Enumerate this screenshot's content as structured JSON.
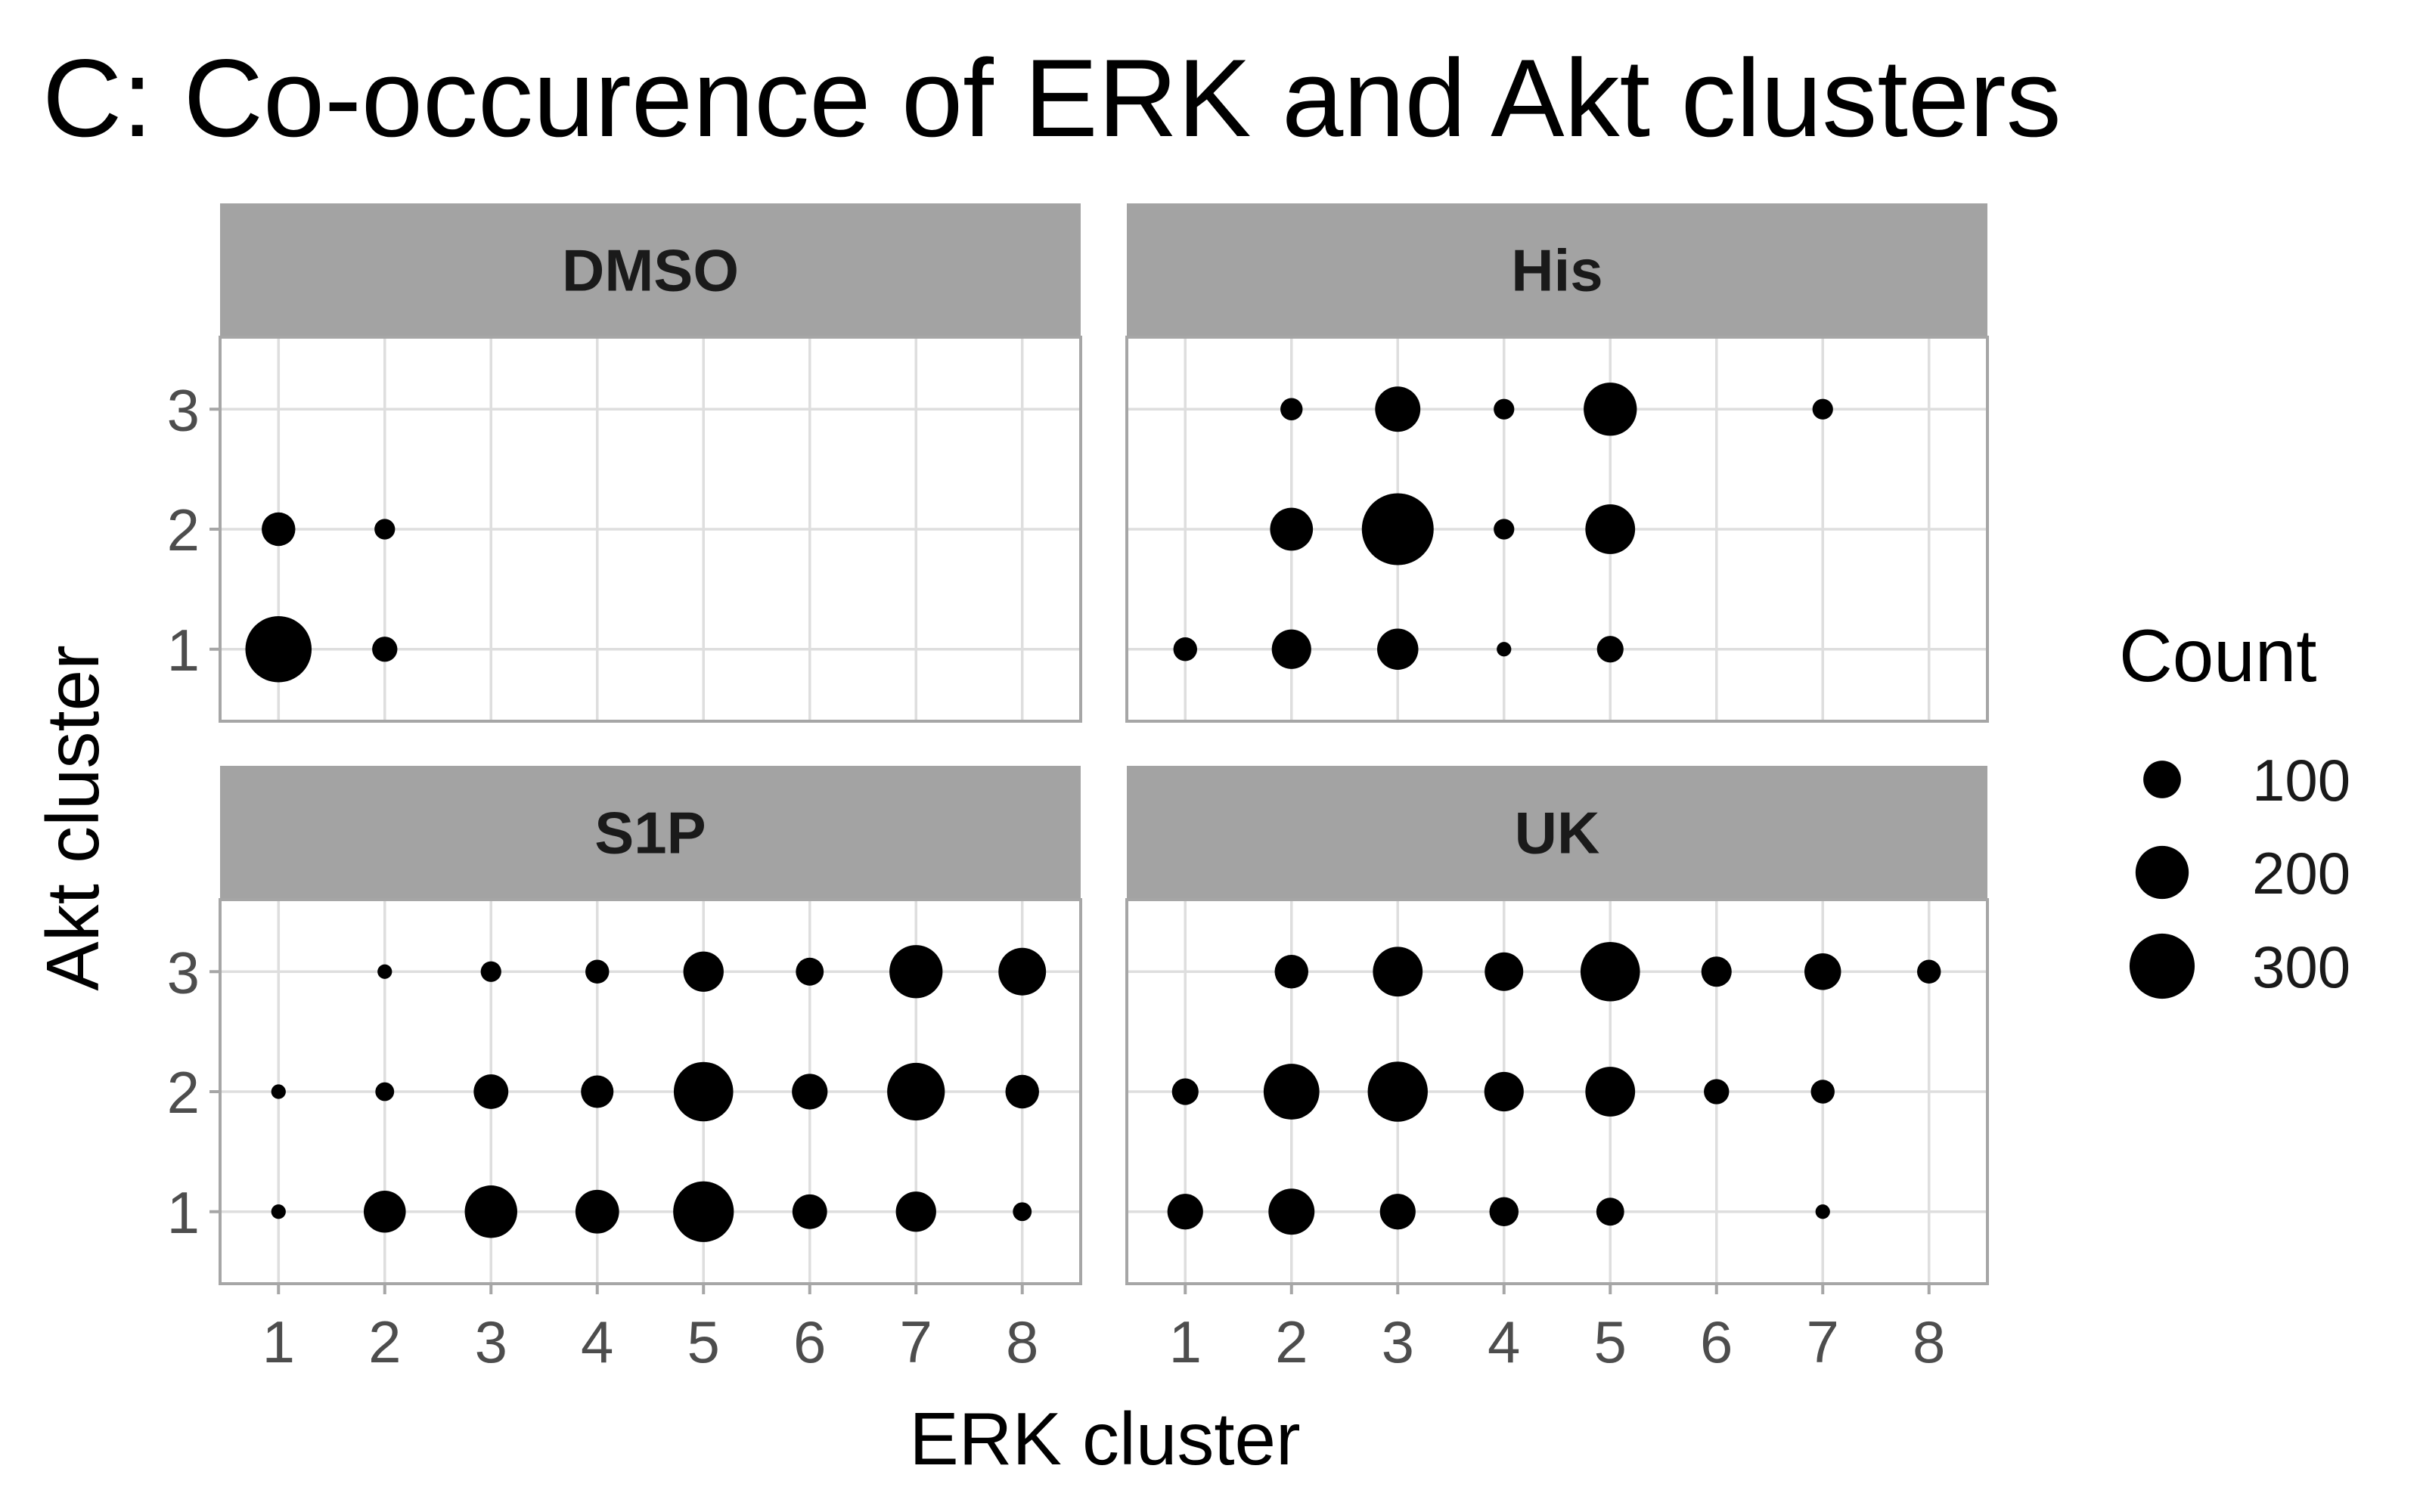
{
  "chart_data": {
    "type": "scatter",
    "title": "C: Co-occurence of ERK and Akt clusters",
    "xlabel": "ERK cluster",
    "ylabel": "Akt cluster",
    "x_ticks": [
      "1",
      "2",
      "3",
      "4",
      "5",
      "6",
      "7",
      "8"
    ],
    "y_ticks": [
      "1",
      "2",
      "3"
    ],
    "xlim": [
      0.45,
      8.55
    ],
    "ylim": [
      0.4,
      3.6
    ],
    "grid": true,
    "facets": [
      {
        "name": "DMSO",
        "points": [
          {
            "x": 1,
            "y": 1,
            "count": 310
          },
          {
            "x": 1,
            "y": 2,
            "count": 80
          },
          {
            "x": 2,
            "y": 1,
            "count": 45
          },
          {
            "x": 2,
            "y": 2,
            "count": 30
          }
        ]
      },
      {
        "name": "His",
        "points": [
          {
            "x": 1,
            "y": 1,
            "count": 40
          },
          {
            "x": 2,
            "y": 1,
            "count": 110
          },
          {
            "x": 2,
            "y": 2,
            "count": 130
          },
          {
            "x": 2,
            "y": 3,
            "count": 35
          },
          {
            "x": 3,
            "y": 1,
            "count": 120
          },
          {
            "x": 3,
            "y": 2,
            "count": 365
          },
          {
            "x": 3,
            "y": 3,
            "count": 145
          },
          {
            "x": 4,
            "y": 1,
            "count": 15
          },
          {
            "x": 4,
            "y": 2,
            "count": 30
          },
          {
            "x": 4,
            "y": 3,
            "count": 30
          },
          {
            "x": 5,
            "y": 1,
            "count": 50
          },
          {
            "x": 5,
            "y": 2,
            "count": 175
          },
          {
            "x": 5,
            "y": 3,
            "count": 200
          },
          {
            "x": 7,
            "y": 3,
            "count": 30
          }
        ]
      },
      {
        "name": "S1P",
        "points": [
          {
            "x": 1,
            "y": 1,
            "count": 15
          },
          {
            "x": 1,
            "y": 2,
            "count": 15
          },
          {
            "x": 2,
            "y": 1,
            "count": 125
          },
          {
            "x": 2,
            "y": 2,
            "count": 25
          },
          {
            "x": 2,
            "y": 3,
            "count": 15
          },
          {
            "x": 3,
            "y": 1,
            "count": 195
          },
          {
            "x": 3,
            "y": 2,
            "count": 85
          },
          {
            "x": 3,
            "y": 3,
            "count": 30
          },
          {
            "x": 4,
            "y": 1,
            "count": 135
          },
          {
            "x": 4,
            "y": 2,
            "count": 75
          },
          {
            "x": 4,
            "y": 3,
            "count": 40
          },
          {
            "x": 5,
            "y": 1,
            "count": 260
          },
          {
            "x": 5,
            "y": 2,
            "count": 250
          },
          {
            "x": 5,
            "y": 3,
            "count": 115
          },
          {
            "x": 6,
            "y": 1,
            "count": 85
          },
          {
            "x": 6,
            "y": 2,
            "count": 90
          },
          {
            "x": 6,
            "y": 3,
            "count": 55
          },
          {
            "x": 7,
            "y": 1,
            "count": 115
          },
          {
            "x": 7,
            "y": 2,
            "count": 235
          },
          {
            "x": 7,
            "y": 3,
            "count": 200
          },
          {
            "x": 8,
            "y": 1,
            "count": 25
          },
          {
            "x": 8,
            "y": 2,
            "count": 80
          },
          {
            "x": 8,
            "y": 3,
            "count": 160
          }
        ]
      },
      {
        "name": "UK",
        "points": [
          {
            "x": 1,
            "y": 1,
            "count": 90
          },
          {
            "x": 1,
            "y": 2,
            "count": 50
          },
          {
            "x": 2,
            "y": 1,
            "count": 150
          },
          {
            "x": 2,
            "y": 2,
            "count": 220
          },
          {
            "x": 2,
            "y": 3,
            "count": 80
          },
          {
            "x": 3,
            "y": 1,
            "count": 90
          },
          {
            "x": 3,
            "y": 2,
            "count": 255
          },
          {
            "x": 3,
            "y": 3,
            "count": 175
          },
          {
            "x": 4,
            "y": 1,
            "count": 60
          },
          {
            "x": 4,
            "y": 2,
            "count": 110
          },
          {
            "x": 4,
            "y": 3,
            "count": 105
          },
          {
            "x": 5,
            "y": 1,
            "count": 55
          },
          {
            "x": 5,
            "y": 2,
            "count": 175
          },
          {
            "x": 5,
            "y": 3,
            "count": 250
          },
          {
            "x": 6,
            "y": 2,
            "count": 45
          },
          {
            "x": 6,
            "y": 3,
            "count": 65
          },
          {
            "x": 7,
            "y": 1,
            "count": 15
          },
          {
            "x": 7,
            "y": 2,
            "count": 40
          },
          {
            "x": 7,
            "y": 3,
            "count": 95
          },
          {
            "x": 8,
            "y": 3,
            "count": 40
          }
        ]
      }
    ],
    "legend": {
      "title": "Count",
      "placement": "right",
      "entries": [
        {
          "label": "100",
          "value": 100
        },
        {
          "label": "200",
          "value": 200
        },
        {
          "label": "300",
          "value": 300
        }
      ]
    },
    "colors": {
      "points": "#000000",
      "strip": "#a3a3a3",
      "panel_border": "#a6a6a6",
      "grid": "#dedede",
      "tick_label": "#4d4d4d"
    }
  }
}
